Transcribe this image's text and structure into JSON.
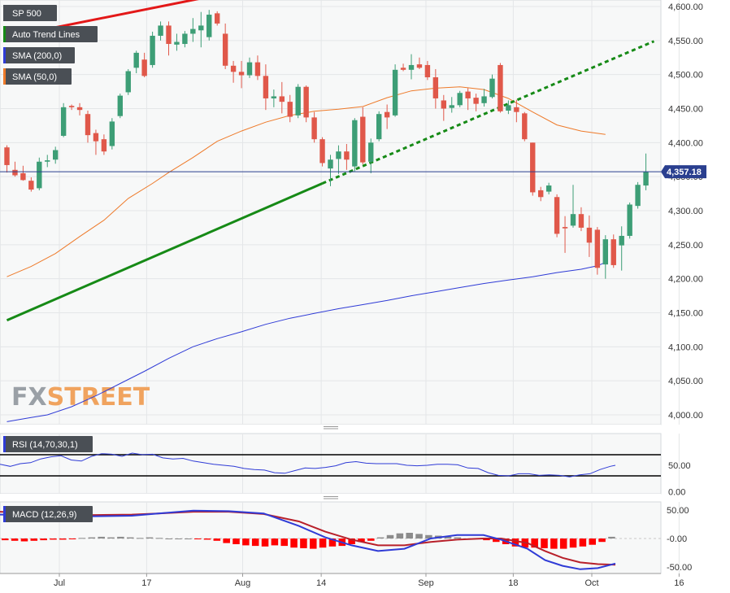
{
  "colors": {
    "background": "#ffffff",
    "plot_bg": "#f7f8f8",
    "grid": "#e4e6e8",
    "up_candle": "#3d9e76",
    "down_candle": "#e0584a",
    "sma200": "#2f3bd6",
    "sma50": "#ee7a2a",
    "trend_support": "#168a16",
    "trend_resistance": "#e31818",
    "price_line": "#2a3f8f",
    "price_tag_bg": "#2a3f8f",
    "legend_bg": "#4a4f55",
    "rsi_line": "#2f3bd6",
    "rsi_bands": "#000000",
    "macd_line": "#2f3bd6",
    "signal_line": "#b8202a",
    "hist_neg": "#ff0000",
    "hist_pos": "#8c8c8c",
    "watermark_fx": "#9aa0a6",
    "watermark_street": "#f0a35e"
  },
  "watermark": {
    "part1": "FX",
    "part2": "STREET"
  },
  "legends": {
    "main": [
      {
        "label": "SP 500",
        "swatch": "#4a4f55"
      },
      {
        "label": "Auto Trend Lines",
        "swatch": "#168a16"
      },
      {
        "label": "SMA (200,0)",
        "swatch": "#2f3bd6"
      },
      {
        "label": "SMA (50,0)",
        "swatch": "#ee7a2a"
      }
    ],
    "rsi": {
      "label": "RSI (14,70,30,1)",
      "swatch": "#2f3bd6"
    },
    "macd": {
      "label": "MACD (12,26,9)",
      "swatch": "#2f3bd6"
    }
  },
  "x_axis": {
    "labels": [
      {
        "text": "Jul",
        "index": 4.0
      },
      {
        "text": "17",
        "index": 14.0
      },
      {
        "text": "Aug",
        "index": 25.0
      },
      {
        "text": "14",
        "index": 34.0
      },
      {
        "text": "Sep",
        "index": 46.0
      },
      {
        "text": "18",
        "index": 56.0
      },
      {
        "text": "Oct",
        "index": 65.0
      },
      {
        "text": "16",
        "index": 75.0
      }
    ]
  },
  "chart_data": [
    {
      "type": "candlestick",
      "title": "SP 500",
      "yticks": [
        "4,600.00",
        "4,550.00",
        "4,500.00",
        "4,450.00",
        "4,400.00",
        "4,350.00",
        "4,300.00",
        "4,250.00",
        "4,200.00",
        "4,150.00",
        "4,100.00",
        "4,050.00",
        "4,000.00"
      ],
      "ylim": [
        3990,
        4610
      ],
      "last_price": 4357.18,
      "last_price_label": "4,357.18",
      "grid": true,
      "legend_position": "top-left",
      "ohlc": [
        [
          4393,
          4396,
          4356,
          4367
        ],
        [
          4360,
          4372,
          4350,
          4352
        ],
        [
          4355,
          4366,
          4344,
          4345
        ],
        [
          4344,
          4349,
          4328,
          4331
        ],
        [
          4333,
          4378,
          4330,
          4372
        ],
        [
          4372,
          4382,
          4364,
          4374
        ],
        [
          4375,
          4394,
          4369,
          4389
        ],
        [
          4410,
          4458,
          4408,
          4452
        ],
        [
          4454,
          4456,
          4448,
          4452
        ],
        [
          4452,
          4458,
          4440,
          4448
        ],
        [
          4442,
          4447,
          4400,
          4411
        ],
        [
          4414,
          4419,
          4382,
          4402
        ],
        [
          4405,
          4412,
          4382,
          4387
        ],
        [
          4395,
          4436,
          4390,
          4431
        ],
        [
          4439,
          4472,
          4436,
          4469
        ],
        [
          4474,
          4508,
          4470,
          4505
        ],
        [
          4510,
          4535,
          4502,
          4532
        ],
        [
          4522,
          4532,
          4496,
          4498
        ],
        [
          4514,
          4563,
          4510,
          4557
        ],
        [
          4557,
          4578,
          4550,
          4572
        ],
        [
          4572,
          4578,
          4528,
          4545
        ],
        [
          4544,
          4560,
          4535,
          4548
        ],
        [
          4545,
          4564,
          4540,
          4560
        ],
        [
          4560,
          4583,
          4548,
          4567
        ],
        [
          4565,
          4592,
          4540,
          4572
        ],
        [
          4555,
          4595,
          4550,
          4588
        ],
        [
          4590,
          4593,
          4572,
          4575
        ],
        [
          4560,
          4575,
          4508,
          4513
        ],
        [
          4513,
          4520,
          4488,
          4504
        ],
        [
          4504,
          4520,
          4480,
          4499
        ],
        [
          4499,
          4525,
          4495,
          4518
        ],
        [
          4518,
          4528,
          4492,
          4498
        ],
        [
          4498,
          4515,
          4448,
          4465
        ],
        [
          4465,
          4478,
          4452,
          4468
        ],
        [
          4468,
          4489,
          4443,
          4460
        ],
        [
          4460,
          4470,
          4430,
          4438
        ],
        [
          4440,
          4486,
          4436,
          4482
        ],
        [
          4482,
          4484,
          4430,
          4437
        ],
        [
          4437,
          4445,
          4400,
          4405
        ],
        [
          4405,
          4408,
          4365,
          4370
        ],
        [
          4362,
          4382,
          4336,
          4375
        ],
        [
          4376,
          4396,
          4354,
          4387
        ],
        [
          4387,
          4398,
          4360,
          4375
        ],
        [
          4365,
          4436,
          4357,
          4433
        ],
        [
          4438,
          4452,
          4368,
          4371
        ],
        [
          4372,
          4406,
          4355,
          4400
        ],
        [
          4405,
          4446,
          4402,
          4442
        ],
        [
          4445,
          4456,
          4420,
          4437
        ],
        [
          4440,
          4515,
          4438,
          4507
        ],
        [
          4510,
          4516,
          4505,
          4507
        ],
        [
          4507,
          4530,
          4493,
          4514
        ],
        [
          4515,
          4525,
          4508,
          4510
        ],
        [
          4514,
          4520,
          4492,
          4496
        ],
        [
          4496,
          4508,
          4450,
          4465
        ],
        [
          4462,
          4470,
          4432,
          4450
        ],
        [
          4451,
          4467,
          4444,
          4455
        ],
        [
          4455,
          4476,
          4452,
          4473
        ],
        [
          4475,
          4480,
          4448,
          4465
        ],
        [
          4466,
          4472,
          4446,
          4457
        ],
        [
          4458,
          4479,
          4453,
          4468
        ],
        [
          4467,
          4500,
          4465,
          4494
        ],
        [
          4514,
          4517,
          4444,
          4446
        ],
        [
          4447,
          4462,
          4442,
          4455
        ],
        [
          4452,
          4463,
          4430,
          4445
        ],
        [
          4443,
          4445,
          4402,
          4405
        ],
        [
          4400,
          4400,
          4322,
          4327
        ],
        [
          4330,
          4335,
          4314,
          4320
        ],
        [
          4328,
          4341,
          4324,
          4337
        ],
        [
          4320,
          4324,
          4261,
          4266
        ],
        [
          4276,
          4292,
          4238,
          4274
        ],
        [
          4278,
          4338,
          4275,
          4295
        ],
        [
          4295,
          4305,
          4270,
          4275
        ],
        [
          4275,
          4293,
          4232,
          4253
        ],
        [
          4272,
          4276,
          4206,
          4216
        ],
        [
          4221,
          4264,
          4200,
          4258
        ],
        [
          4258,
          4265,
          4216,
          4220
        ],
        [
          4249,
          4277,
          4212,
          4263
        ],
        [
          4263,
          4312,
          4259,
          4309
        ],
        [
          4307,
          4342,
          4303,
          4338
        ],
        [
          4337,
          4384,
          4330,
          4357
        ]
      ],
      "sma200": [
        [
          0,
          3990
        ],
        [
          3,
          3996
        ],
        [
          5,
          4000
        ],
        [
          8,
          4012
        ],
        [
          11,
          4028
        ],
        [
          14,
          4046
        ],
        [
          17,
          4064
        ],
        [
          20,
          4083
        ],
        [
          23,
          4100
        ],
        [
          26,
          4112
        ],
        [
          29,
          4122
        ],
        [
          32,
          4133
        ],
        [
          35,
          4142
        ],
        [
          38,
          4149
        ],
        [
          41,
          4156
        ],
        [
          44,
          4162
        ],
        [
          47,
          4168
        ],
        [
          50,
          4175
        ],
        [
          53,
          4181
        ],
        [
          56,
          4187
        ],
        [
          59,
          4193
        ],
        [
          62,
          4198
        ],
        [
          65,
          4203
        ],
        [
          68,
          4209
        ],
        [
          71,
          4214
        ],
        [
          73,
          4219
        ],
        [
          74,
          4224
        ]
      ],
      "sma50": [
        [
          0,
          4203
        ],
        [
          3,
          4218
        ],
        [
          6,
          4237
        ],
        [
          9,
          4262
        ],
        [
          12,
          4286
        ],
        [
          15,
          4318
        ],
        [
          18,
          4340
        ],
        [
          20,
          4356
        ],
        [
          23,
          4378
        ],
        [
          26,
          4402
        ],
        [
          29,
          4417
        ],
        [
          32,
          4430
        ],
        [
          35,
          4440
        ],
        [
          38,
          4446
        ],
        [
          41,
          4449
        ],
        [
          44,
          4453
        ],
        [
          47,
          4466
        ],
        [
          50,
          4476
        ],
        [
          53,
          4480
        ],
        [
          56,
          4482
        ],
        [
          59,
          4478
        ],
        [
          62,
          4465
        ],
        [
          65,
          4445
        ],
        [
          68,
          4426
        ],
        [
          71,
          4417
        ],
        [
          74,
          4412
        ]
      ],
      "trend_support_solid": [
        [
          0,
          4139
        ],
        [
          39,
          4340
        ]
      ],
      "trend_support_dotted": [
        [
          39,
          4340
        ],
        [
          80,
          4549
        ]
      ],
      "trend_resistance": [
        [
          0,
          4555
        ],
        [
          24,
          4612
        ]
      ]
    },
    {
      "type": "line",
      "title": "RSI (14,70,30,1)",
      "yticks": [
        "50.00",
        "0.00"
      ],
      "ylim": [
        0,
        100
      ],
      "bands": [
        70,
        30
      ],
      "values": [
        [
          0,
          52
        ],
        [
          2,
          48
        ],
        [
          4,
          53
        ],
        [
          6,
          55
        ],
        [
          8,
          62
        ],
        [
          10,
          66
        ],
        [
          12,
          68
        ],
        [
          14,
          60
        ],
        [
          16,
          58
        ],
        [
          18,
          67
        ],
        [
          20,
          72
        ],
        [
          22,
          71
        ],
        [
          24,
          67
        ],
        [
          26,
          73
        ],
        [
          28,
          70
        ],
        [
          30,
          71
        ],
        [
          32,
          64
        ],
        [
          34,
          62
        ],
        [
          36,
          63
        ],
        [
          38,
          58
        ],
        [
          40,
          55
        ],
        [
          42,
          52
        ],
        [
          44,
          50
        ],
        [
          46,
          48
        ],
        [
          48,
          44
        ],
        [
          50,
          42
        ],
        [
          52,
          41
        ],
        [
          54,
          36
        ],
        [
          56,
          35
        ],
        [
          58,
          40
        ],
        [
          60,
          45
        ],
        [
          62,
          44
        ],
        [
          64,
          46
        ],
        [
          66,
          49
        ],
        [
          68,
          55
        ],
        [
          70,
          57
        ],
        [
          72,
          54
        ],
        [
          74,
          53
        ],
        [
          76,
          53
        ],
        [
          78,
          53
        ],
        [
          80,
          50
        ],
        [
          82,
          49
        ],
        [
          84,
          50
        ],
        [
          86,
          52
        ],
        [
          88,
          52
        ],
        [
          90,
          51
        ],
        [
          92,
          45
        ],
        [
          94,
          44
        ],
        [
          96,
          36
        ],
        [
          98,
          31
        ],
        [
          100,
          30
        ],
        [
          102,
          34
        ],
        [
          104,
          34
        ],
        [
          106,
          31
        ],
        [
          108,
          32
        ],
        [
          110,
          31
        ],
        [
          112,
          28
        ],
        [
          114,
          32
        ],
        [
          116,
          34
        ],
        [
          118,
          42
        ],
        [
          120,
          48
        ],
        [
          121,
          50
        ]
      ]
    },
    {
      "type": "line",
      "title": "MACD (12,26,9)",
      "yticks": [
        "50.00",
        "-0.00",
        "-50.00"
      ],
      "ylim": [
        -58,
        58
      ],
      "macd": [
        [
          0,
          42
        ],
        [
          5,
          41
        ],
        [
          10,
          39
        ],
        [
          15,
          40
        ],
        [
          18,
          44
        ],
        [
          22,
          49
        ],
        [
          26,
          48
        ],
        [
          30,
          44
        ],
        [
          34,
          22
        ],
        [
          37,
          2
        ],
        [
          40,
          -12
        ],
        [
          43,
          -22
        ],
        [
          46,
          -18
        ],
        [
          49,
          0
        ],
        [
          52,
          6
        ],
        [
          55,
          6
        ],
        [
          57,
          -2
        ],
        [
          60,
          -18
        ],
        [
          62,
          -38
        ],
        [
          64,
          -48
        ],
        [
          66,
          -54
        ],
        [
          68,
          -52
        ],
        [
          70,
          -44
        ]
      ],
      "signal": [
        [
          0,
          47
        ],
        [
          5,
          44
        ],
        [
          10,
          41
        ],
        [
          15,
          42
        ],
        [
          18,
          44
        ],
        [
          22,
          47
        ],
        [
          26,
          47
        ],
        [
          30,
          43
        ],
        [
          34,
          30
        ],
        [
          37,
          12
        ],
        [
          40,
          -2
        ],
        [
          43,
          -12
        ],
        [
          46,
          -12
        ],
        [
          49,
          -6
        ],
        [
          52,
          -2
        ],
        [
          55,
          0
        ],
        [
          57,
          0
        ],
        [
          60,
          -8
        ],
        [
          62,
          -22
        ],
        [
          64,
          -34
        ],
        [
          66,
          -42
        ],
        [
          68,
          -45
        ],
        [
          70,
          -46
        ]
      ],
      "histogram": [
        -3,
        -4,
        -5,
        -4,
        -3,
        -2,
        -2,
        -1,
        1,
        2,
        3,
        2,
        3,
        2,
        1,
        2,
        1,
        0,
        0,
        0,
        -1,
        -2,
        -4,
        -8,
        -10,
        -12,
        -13,
        -14,
        -12,
        -13,
        -16,
        -17,
        -18,
        -16,
        -14,
        -13,
        -10,
        -6,
        -4,
        2,
        6,
        9,
        10,
        8,
        6,
        5,
        3,
        2,
        0,
        -1,
        -3,
        -6,
        -10,
        -14,
        -16,
        -16,
        -17,
        -18,
        -18,
        -16,
        -14,
        -11,
        -6,
        3
      ]
    }
  ]
}
